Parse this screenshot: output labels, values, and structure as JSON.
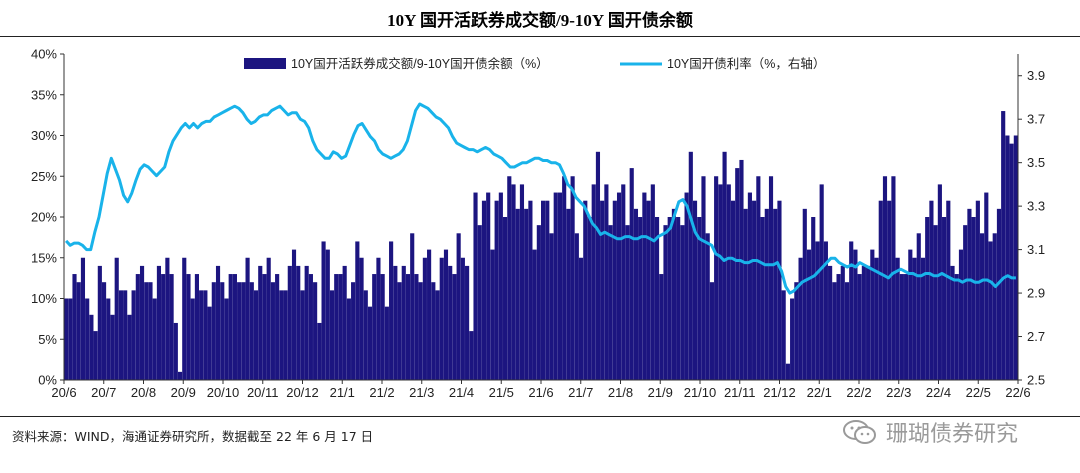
{
  "title": "10Y 国开活跃券成交额/9-10Y 国开债余额",
  "footer": "资料来源：WIND，海通证券研究所，数据截至 22 年 6 月 17 日",
  "watermark": "珊瑚债券研究",
  "chart_data": {
    "type": "bar",
    "title": "10Y 国开活跃券成交额/9-10Y 国开债余额",
    "legend": [
      "10Y国开活跃券成交额/9-10Y国开债余额（%）",
      "10Y国开债利率（%，右轴）"
    ],
    "legend_placement": "top",
    "colors": {
      "bar": "#1c1580",
      "line": "#19b3ea"
    },
    "x_tick_labels": [
      "20/6",
      "20/7",
      "20/8",
      "20/9",
      "20/10",
      "20/11",
      "20/12",
      "21/1",
      "21/2",
      "21/3",
      "21/4",
      "21/5",
      "21/6",
      "21/7",
      "21/8",
      "21/9",
      "21/10",
      "21/11",
      "21/12",
      "22/1",
      "22/2",
      "22/3",
      "22/4",
      "22/5",
      "22/6"
    ],
    "y_left": {
      "label": "10Y国开活跃券成交额/9-10Y国开债余额（%）",
      "lim": [
        0,
        40
      ],
      "ticks": [
        0,
        5,
        10,
        15,
        20,
        25,
        30,
        35,
        40
      ],
      "tick_labels": [
        "0%",
        "5%",
        "10%",
        "15%",
        "20%",
        "25%",
        "30%",
        "35%",
        "40%"
      ]
    },
    "y_right": {
      "label": "10Y国开债利率（%，右轴）",
      "lim": [
        2.5,
        4.0
      ],
      "ticks": [
        2.5,
        2.7,
        2.9,
        3.1,
        3.3,
        3.5,
        3.7,
        3.9
      ],
      "tick_labels": [
        "2.5",
        "2.7",
        "2.9",
        "3.1",
        "3.3",
        "3.5",
        "3.7",
        "3.9"
      ]
    },
    "series": [
      {
        "name": "10Y国开活跃券成交额/9-10Y国开债余额（%）",
        "type": "bar",
        "axis": "left",
        "values": [
          10,
          10,
          13,
          12,
          15,
          10,
          8,
          6,
          14,
          12,
          10,
          8,
          15,
          11,
          11,
          8,
          11,
          13,
          14,
          12,
          12,
          10,
          14,
          13,
          15,
          13,
          7,
          1,
          15,
          13,
          10,
          13,
          11,
          11,
          9,
          12,
          14,
          12,
          10,
          13,
          13,
          12,
          12,
          15,
          12,
          11,
          14,
          13,
          15,
          12,
          13,
          11,
          11,
          14,
          16,
          14,
          11,
          14,
          13,
          12,
          7,
          17,
          16,
          11,
          13,
          13,
          14,
          10,
          12,
          17,
          15,
          11,
          9,
          13,
          15,
          13,
          9,
          17,
          14,
          12,
          14,
          13,
          18,
          13,
          12,
          15,
          16,
          12,
          11,
          15,
          16,
          14,
          13,
          18,
          15,
          14,
          6,
          23,
          19,
          22,
          23,
          16,
          22,
          23,
          20,
          25,
          24,
          21,
          24,
          21,
          22,
          16,
          19,
          22,
          22,
          18,
          23,
          23,
          25,
          21,
          25,
          18,
          15,
          22,
          20,
          24,
          28,
          22,
          24,
          19,
          22,
          23,
          24,
          19,
          26,
          21,
          20,
          23,
          22,
          24,
          20,
          13,
          19,
          20,
          21,
          20,
          19,
          23,
          28,
          22,
          20,
          25,
          18,
          12,
          25,
          24,
          28,
          24,
          22,
          26,
          27,
          21,
          23,
          22,
          25,
          20,
          21,
          25,
          21,
          22,
          11,
          2,
          10,
          12,
          15,
          21,
          16,
          20,
          17,
          24,
          17,
          14,
          12,
          13,
          14,
          12,
          17,
          16,
          13,
          14,
          14,
          16,
          15,
          22,
          25,
          22,
          25,
          15,
          13,
          13,
          16,
          15,
          18,
          15,
          20,
          22,
          19,
          24,
          20,
          22,
          14,
          13,
          16,
          19,
          21,
          20,
          22,
          18,
          23,
          17,
          18,
          21,
          33,
          30,
          29,
          30
        ]
      },
      {
        "name": "10Y国开债利率（%，右轴）",
        "type": "line",
        "axis": "right",
        "values": [
          3.14,
          3.12,
          3.13,
          3.13,
          3.12,
          3.1,
          3.1,
          3.18,
          3.25,
          3.35,
          3.45,
          3.52,
          3.47,
          3.42,
          3.35,
          3.32,
          3.36,
          3.42,
          3.47,
          3.49,
          3.48,
          3.46,
          3.44,
          3.46,
          3.48,
          3.55,
          3.6,
          3.63,
          3.66,
          3.68,
          3.66,
          3.68,
          3.66,
          3.68,
          3.69,
          3.69,
          3.71,
          3.72,
          3.73,
          3.74,
          3.75,
          3.76,
          3.75,
          3.73,
          3.7,
          3.68,
          3.69,
          3.71,
          3.72,
          3.72,
          3.74,
          3.75,
          3.76,
          3.74,
          3.72,
          3.73,
          3.73,
          3.7,
          3.69,
          3.66,
          3.6,
          3.56,
          3.54,
          3.52,
          3.52,
          3.55,
          3.54,
          3.52,
          3.53,
          3.58,
          3.63,
          3.67,
          3.68,
          3.65,
          3.62,
          3.6,
          3.56,
          3.54,
          3.53,
          3.52,
          3.53,
          3.54,
          3.56,
          3.6,
          3.67,
          3.74,
          3.77,
          3.76,
          3.75,
          3.73,
          3.71,
          3.7,
          3.68,
          3.66,
          3.62,
          3.59,
          3.58,
          3.57,
          3.56,
          3.56,
          3.55,
          3.56,
          3.57,
          3.56,
          3.54,
          3.53,
          3.52,
          3.5,
          3.48,
          3.48,
          3.49,
          3.5,
          3.5,
          3.51,
          3.52,
          3.52,
          3.51,
          3.51,
          3.5,
          3.5,
          3.49,
          3.45,
          3.4,
          3.38,
          3.34,
          3.32,
          3.3,
          3.26,
          3.22,
          3.2,
          3.17,
          3.18,
          3.17,
          3.16,
          3.15,
          3.15,
          3.16,
          3.16,
          3.15,
          3.15,
          3.16,
          3.16,
          3.15,
          3.14,
          3.16,
          3.17,
          3.18,
          3.2,
          3.26,
          3.32,
          3.33,
          3.3,
          3.24,
          3.18,
          3.15,
          3.14,
          3.13,
          3.12,
          3.08,
          3.07,
          3.05,
          3.06,
          3.06,
          3.05,
          3.05,
          3.04,
          3.04,
          3.05,
          3.05,
          3.04,
          3.03,
          3.03,
          3.03,
          3.04,
          3.0,
          2.93,
          2.9,
          2.91,
          2.93,
          2.95,
          2.96,
          2.97,
          2.98,
          3.0,
          3.02,
          3.04,
          3.06,
          3.06,
          3.04,
          3.03,
          3.02,
          3.03,
          3.02,
          3.04,
          3.03,
          3.02,
          3.01,
          3.0,
          2.99,
          2.98,
          2.97,
          2.99,
          3.0,
          3.01,
          3.0,
          2.99,
          2.99,
          2.98,
          2.98,
          2.99,
          2.99,
          2.98,
          2.98,
          2.99,
          2.98,
          2.97,
          2.96,
          2.96,
          2.95,
          2.96,
          2.96,
          2.95,
          2.95,
          2.96,
          2.96,
          2.95,
          2.93,
          2.95,
          2.97,
          2.98,
          2.97,
          2.97
        ]
      }
    ]
  }
}
